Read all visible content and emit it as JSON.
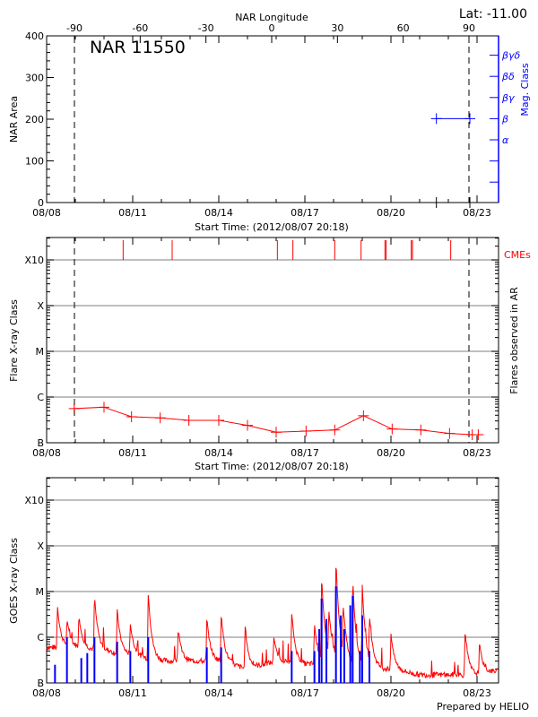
{
  "chart_data": [
    {
      "type": "scatter",
      "title": "NAR 11550",
      "annotation": "Lat: -11.00",
      "top_axis_label": "NAR Longitude",
      "top_ticks": [
        "-90",
        "-60",
        "-30",
        "0",
        "30",
        "60",
        "90"
      ],
      "xlabel": "Start Time: (2012/08/07 20:18)",
      "x_ticks": [
        "08/08",
        "08/11",
        "08/14",
        "08/17",
        "08/20",
        "08/23"
      ],
      "ylabel": "NAR Area",
      "ylim": [
        0,
        400
      ],
      "y_ticks": [
        "0",
        "100",
        "200",
        "300",
        "400"
      ],
      "right_axis_label": "Mag. Class",
      "right_ticks": [
        "α",
        "β",
        "βγ",
        "βδ",
        "βγδ"
      ],
      "limb_markers_longitude": [
        -90,
        90
      ],
      "series": [
        {
          "name": "NAR Area",
          "color": "#000000",
          "points": [
            {
              "date": "08/21 14:00",
              "value": 0
            },
            {
              "date": "08/22 18:00",
              "value": 0
            }
          ]
        },
        {
          "name": "Mag. Class",
          "color": "#0000ff",
          "points": [
            {
              "date": "08/21 14:00",
              "value": "β"
            },
            {
              "date": "08/22 18:00",
              "value": "β"
            }
          ]
        }
      ]
    },
    {
      "type": "line",
      "xlabel": "Start Time: (2012/08/07 20:18)",
      "x_ticks": [
        "08/08",
        "08/11",
        "08/14",
        "08/17",
        "08/20",
        "08/23"
      ],
      "ylabel": "Flare X-ray Class",
      "y_scale": "log",
      "y_ticks": [
        "B",
        "C",
        "M",
        "X",
        "X10"
      ],
      "right_axis_label": "Flares observed in AR",
      "cme_label": "CMEs",
      "grid": true,
      "color": "#ff0000",
      "flares": [
        {
          "date": "08/08 23:00",
          "class": "B5.6"
        },
        {
          "date": "08/10 00:00",
          "class": "B6.0"
        },
        {
          "date": "08/10 23:00",
          "class": "B3.7"
        },
        {
          "date": "08/11 23:00",
          "class": "B3.5"
        },
        {
          "date": "08/12 23:00",
          "class": "B3.1"
        },
        {
          "date": "08/14 00:00",
          "class": "B3.1"
        },
        {
          "date": "08/15 00:00",
          "class": "B2.4"
        },
        {
          "date": "08/16 00:00",
          "class": "B1.7"
        },
        {
          "date": "08/17 01:00",
          "class": "B1.8"
        },
        {
          "date": "08/18 01:00",
          "class": "B1.9"
        },
        {
          "date": "08/19 01:00",
          "class": "B3.9"
        },
        {
          "date": "08/20 01:00",
          "class": "B2.0"
        },
        {
          "date": "08/21 01:00",
          "class": "B1.9"
        },
        {
          "date": "08/22 01:00",
          "class": "B1.6"
        },
        {
          "date": "08/22 20:00",
          "class": "B1.5"
        },
        {
          "date": "08/23 01:00",
          "class": "B1.5"
        }
      ],
      "cmes": [
        "08/10 16:00",
        "08/12 09:00",
        "08/16 01:00",
        "08/16 14:00",
        "08/18 01:00",
        "08/18 23:00",
        "08/19 19:00",
        "08/19 20:00",
        "08/20 17:00",
        "08/20 18:00",
        "08/22 02:00"
      ]
    },
    {
      "type": "line",
      "ylabel": "GOES X-ray Class",
      "y_scale": "log",
      "y_ticks": [
        "B",
        "C",
        "M",
        "X",
        "X10"
      ],
      "x_ticks": [
        "08/08",
        "08/11",
        "08/14",
        "08/17",
        "08/20",
        "08/23"
      ],
      "grid": true,
      "series": [
        {
          "color": "#ff0000",
          "daily_background": [
            "B6",
            "B6",
            "B5",
            "B4",
            "B3",
            "B3",
            "B3",
            "B2",
            "B3",
            "B2.5",
            "B3",
            "B2",
            "B2",
            "B1.5",
            "B1.5",
            "B1.5",
            "B2"
          ],
          "peaks": [
            {
              "date": "08/08 09:00",
              "class": "C5.0"
            },
            {
              "date": "08/08 17:00",
              "class": "C2.5"
            },
            {
              "date": "08/09 03:00",
              "class": "C3.0"
            },
            {
              "date": "08/09 16:00",
              "class": "C8.7"
            },
            {
              "date": "08/10 11:00",
              "class": "C4.2"
            },
            {
              "date": "08/10 22:00",
              "class": "C2.0"
            },
            {
              "date": "08/11 13:00",
              "class": "M1.0"
            },
            {
              "date": "08/12 14:00",
              "class": "C1.5"
            },
            {
              "date": "08/13 14:00",
              "class": "C2.9"
            },
            {
              "date": "08/14 02:00",
              "class": "C3.5"
            },
            {
              "date": "08/14 22:00",
              "class": "C1.8"
            },
            {
              "date": "08/15 22:00",
              "class": "C1.0"
            },
            {
              "date": "08/16 13:00",
              "class": "C3.7"
            },
            {
              "date": "08/17 08:00",
              "class": "C2.0"
            },
            {
              "date": "08/17 14:00",
              "class": "M2.4"
            },
            {
              "date": "08/17 20:00",
              "class": "C4.0"
            },
            {
              "date": "08/18 02:00",
              "class": "M5.6"
            },
            {
              "date": "08/18 08:00",
              "class": "C5.0"
            },
            {
              "date": "08/18 16:00",
              "class": "M2.1"
            },
            {
              "date": "08/19 00:00",
              "class": "M1.4"
            },
            {
              "date": "08/19 06:00",
              "class": "C3.0"
            },
            {
              "date": "08/20 00:00",
              "class": "C1.2"
            },
            {
              "date": "08/22 14:00",
              "class": "C1.4"
            },
            {
              "date": "08/23 02:00",
              "class": "B8"
            }
          ]
        },
        {
          "color": "#0000ff",
          "bars": [
            {
              "date": "08/08 07:00",
              "class": "B2.5"
            },
            {
              "date": "08/08 17:00",
              "class": "C1.0"
            },
            {
              "date": "08/09 05:00",
              "class": "B3.5"
            },
            {
              "date": "08/09 10:00",
              "class": "B4.5"
            },
            {
              "date": "08/09 16:00",
              "class": "C1.0"
            },
            {
              "date": "08/10 11:00",
              "class": "B8"
            },
            {
              "date": "08/10 22:00",
              "class": "B5"
            },
            {
              "date": "08/11 13:00",
              "class": "C1.0"
            },
            {
              "date": "08/13 14:00",
              "class": "B6"
            },
            {
              "date": "08/14 02:00",
              "class": "B6"
            },
            {
              "date": "08/16 13:00",
              "class": "B5"
            },
            {
              "date": "08/17 08:00",
              "class": "B5"
            },
            {
              "date": "08/17 12:00",
              "class": "C1.5"
            },
            {
              "date": "08/17 14:00",
              "class": "M0.7"
            },
            {
              "date": "08/17 18:00",
              "class": "C2.5"
            },
            {
              "date": "08/18 02:00",
              "class": "M1.3"
            },
            {
              "date": "08/18 06:00",
              "class": "C3.0"
            },
            {
              "date": "08/18 09:00",
              "class": "C1.5"
            },
            {
              "date": "08/18 14:00",
              "class": "C5.0"
            },
            {
              "date": "08/18 16:00",
              "class": "M0.8"
            },
            {
              "date": "08/18 22:00",
              "class": "B5"
            },
            {
              "date": "08/19 00:00",
              "class": "C3.0"
            },
            {
              "date": "08/19 06:00",
              "class": "B5"
            }
          ]
        }
      ],
      "footer": "Prepared by HELIO"
    }
  ]
}
